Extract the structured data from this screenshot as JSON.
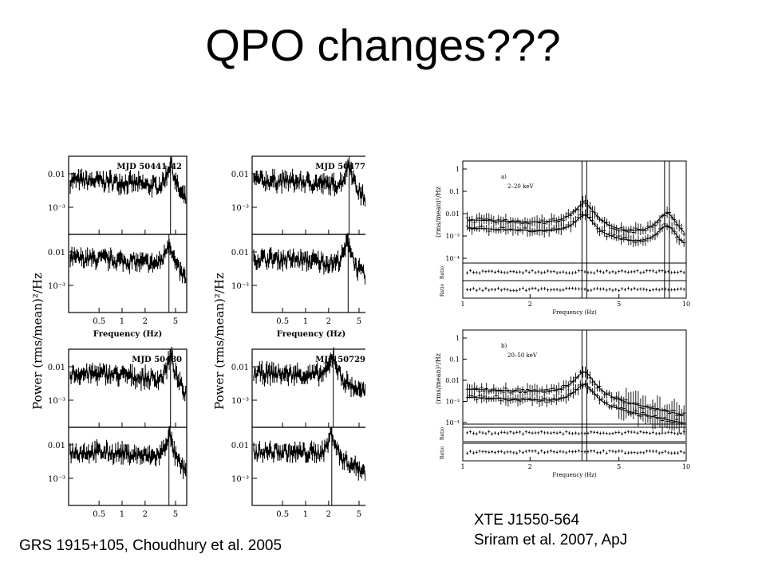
{
  "title": "QPO changes???",
  "captions": {
    "left": "GRS 1915+105, Choudhury et al. 2005",
    "right_line1": "XTE J1550-564",
    "right_line2": "Sriram et al. 2007, ApJ"
  },
  "chart_data": [
    {
      "type": "line",
      "figure": "left",
      "ylabel": "Power (rms/mean)²/Hz",
      "xlabel": "Frequency (Hz)",
      "xscale": "log",
      "yscale": "log",
      "xticklabels": [
        "0.5",
        "1",
        "2",
        "5"
      ],
      "yticklabels": [
        "0.01",
        "10⁻³"
      ],
      "panels": [
        {
          "label": "MJD 50441–42",
          "qpo_hz": [
            4.3,
            4.1
          ]
        },
        {
          "label": "MJD 50477",
          "qpo_hz": [
            3.7,
            3.6
          ]
        },
        {
          "label": "MJD 50480",
          "qpo_hz": [
            4.3,
            4.1
          ]
        },
        {
          "label": "MJD 50729",
          "qpo_hz": [
            2.3,
            2.2
          ]
        }
      ]
    },
    {
      "type": "line",
      "figure": "right",
      "ylabel": "(rms/mean)²/Hz",
      "xlabel": "Frequency (Hz)",
      "ratio_label": "Ratio",
      "xscale": "log",
      "yscale": "log",
      "xlim": [
        1,
        10
      ],
      "xticklabels": [
        "1",
        "2",
        "5",
        "10"
      ],
      "yticklabels": [
        "1",
        "0.1",
        "0.01",
        "10⁻³",
        "10⁻⁴"
      ],
      "panels": [
        {
          "label": "a)",
          "band": "2–20 keV",
          "qpo_hz": [
            3.5,
            8.2
          ]
        },
        {
          "label": "b)",
          "band": "20–50 keV",
          "qpo_hz": [
            3.5
          ]
        }
      ]
    }
  ]
}
